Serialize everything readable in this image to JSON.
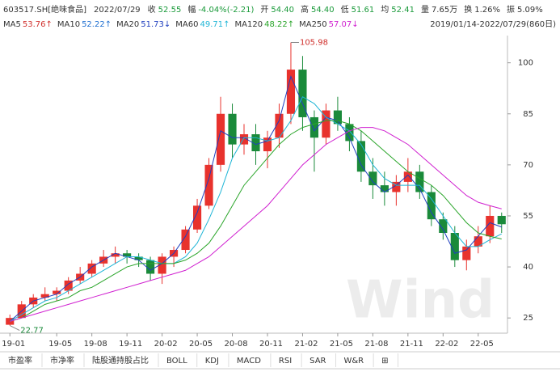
{
  "header": {
    "items": [
      {
        "label": "603517.SH[绝味食品]",
        "color": "#333333"
      },
      {
        "label": "2022/07/29",
        "color": "#333333"
      },
      {
        "label": "收",
        "value": "52.55",
        "color": "#1a9a3a"
      },
      {
        "label": "幅",
        "value": "-4.04%(-2.21)",
        "color": "#1a9a3a"
      },
      {
        "label": "开",
        "value": "54.40",
        "color": "#1a9a3a"
      },
      {
        "label": "高",
        "value": "54.40",
        "color": "#1a9a3a"
      },
      {
        "label": "低",
        "value": "51.61",
        "color": "#1a9a3a"
      },
      {
        "label": "均",
        "value": "52.41",
        "color": "#1a9a3a"
      },
      {
        "label": "量",
        "value": "7.65万",
        "color": "#333333"
      },
      {
        "label": "换",
        "value": "1.26%",
        "color": "#333333"
      },
      {
        "label": "振",
        "value": "5.09%",
        "color": "#333333"
      }
    ],
    "ma": [
      {
        "name": "MA5",
        "value": "53.76↑",
        "color": "#d0312d"
      },
      {
        "name": "MA10",
        "value": "52.22↑",
        "color": "#1f6fd1"
      },
      {
        "name": "MA20",
        "value": "51.73↓",
        "color": "#1f3fbf"
      },
      {
        "name": "MA60",
        "value": "49.71↑",
        "color": "#1fb5d6"
      },
      {
        "name": "MA120",
        "value": "48.22↑",
        "color": "#2aa52a"
      },
      {
        "name": "MA250",
        "value": "57.07↓",
        "color": "#d020d0"
      }
    ],
    "range": "2019/01/14-2022/07/29(860日)"
  },
  "chart_data": {
    "type": "candlestick",
    "categories": [
      "19-01",
      null,
      null,
      null,
      "19-05",
      null,
      null,
      "19-08",
      null,
      null,
      "19-11",
      null,
      null,
      "20-02",
      null,
      null,
      "20-05",
      null,
      null,
      "20-08",
      null,
      null,
      "20-11",
      null,
      null,
      "21-02",
      null,
      null,
      "21-05",
      null,
      null,
      "21-08",
      null,
      null,
      "21-11",
      null,
      null,
      "22-02",
      null,
      null,
      "22-05",
      null,
      null
    ],
    "open": [
      23,
      25,
      29,
      31,
      32,
      33,
      36,
      38,
      41,
      43,
      44,
      43,
      42,
      38,
      43,
      45,
      51,
      58,
      70,
      85,
      76,
      79,
      74,
      78,
      85,
      98,
      84,
      78,
      86,
      82,
      77,
      68,
      64,
      62,
      65,
      68,
      62,
      54,
      50,
      42,
      46,
      49,
      55
    ],
    "high": [
      26,
      30,
      32,
      34,
      34,
      37,
      40,
      42,
      45,
      46,
      45,
      44,
      43,
      44,
      46,
      52,
      60,
      72,
      90,
      88,
      82,
      82,
      80,
      88,
      105.98,
      102,
      86,
      88,
      90,
      84,
      80,
      72,
      68,
      67,
      72,
      70,
      64,
      56,
      52,
      48,
      52,
      58,
      56
    ],
    "low": [
      22.77,
      25,
      28,
      30,
      30,
      32,
      35,
      37,
      40,
      41,
      41,
      40,
      36,
      35,
      40,
      44,
      50,
      57,
      68,
      72,
      73,
      70,
      69,
      75,
      82,
      80,
      68,
      76,
      80,
      74,
      65,
      60,
      58,
      58,
      62,
      60,
      52,
      48,
      40,
      39,
      44,
      47,
      50
    ],
    "close": [
      25,
      29,
      31,
      32,
      33,
      36,
      38,
      41,
      43,
      44,
      43,
      42,
      38,
      43,
      45,
      51,
      58,
      70,
      85,
      76,
      79,
      74,
      78,
      85,
      98,
      84,
      78,
      86,
      82,
      77,
      68,
      64,
      62,
      65,
      68,
      62,
      54,
      50,
      42,
      46,
      49,
      55,
      52.55
    ],
    "up_color": "#e8322d",
    "down_color": "#1a8a3a",
    "series": [
      {
        "name": "MA20",
        "color": "#1f3fbf",
        "values": [
          24,
          27,
          30,
          31,
          32,
          35,
          37,
          40,
          42,
          44,
          43,
          42,
          39,
          41,
          44,
          49,
          56,
          66,
          80,
          78,
          78,
          76,
          77,
          83,
          96,
          88,
          80,
          84,
          83,
          78,
          70,
          65,
          62,
          64,
          67,
          63,
          56,
          51,
          44,
          45,
          49,
          53,
          51.73
        ]
      },
      {
        "name": "MA60",
        "color": "#1fb5d6",
        "values": [
          24,
          26,
          28,
          30,
          31,
          33,
          35,
          37,
          39,
          41,
          43,
          43,
          42,
          41,
          41,
          43,
          47,
          54,
          62,
          72,
          78,
          78,
          77,
          78,
          83,
          90,
          88,
          84,
          82,
          80,
          76,
          70,
          66,
          64,
          64,
          64,
          60,
          55,
          50,
          46,
          46,
          48,
          49.71
        ]
      },
      {
        "name": "MA120",
        "color": "#2aa52a",
        "values": [
          24,
          25,
          27,
          29,
          30,
          31,
          33,
          34,
          36,
          38,
          40,
          41,
          41,
          41,
          41,
          42,
          44,
          47,
          52,
          58,
          64,
          68,
          72,
          76,
          79,
          81,
          82,
          83,
          83,
          82,
          80,
          77,
          74,
          71,
          68,
          66,
          64,
          61,
          57,
          53,
          50,
          49,
          48.22
        ]
      },
      {
        "name": "MA250",
        "color": "#d020d0",
        "values": [
          24,
          25,
          26,
          27,
          28,
          29,
          30,
          31,
          32,
          33,
          34,
          35,
          36,
          37,
          38,
          39,
          41,
          43,
          46,
          49,
          52,
          55,
          58,
          62,
          66,
          70,
          73,
          76,
          78,
          80,
          81,
          81,
          80,
          78,
          76,
          73,
          70,
          67,
          64,
          61,
          59,
          58,
          57.07
        ]
      }
    ],
    "max_label": "105.98",
    "min_label": "22.77",
    "watermark": "Wind",
    "ylim": [
      21,
      108
    ],
    "yticks": [
      25,
      40,
      55,
      70,
      85,
      100
    ],
    "grid": false
  },
  "tabs": [
    "市盈率",
    "市净率",
    "陆股通持股占比",
    "BOLL",
    "KDJ",
    "MACD",
    "RSI",
    "SAR",
    "W&R",
    "⊞"
  ]
}
